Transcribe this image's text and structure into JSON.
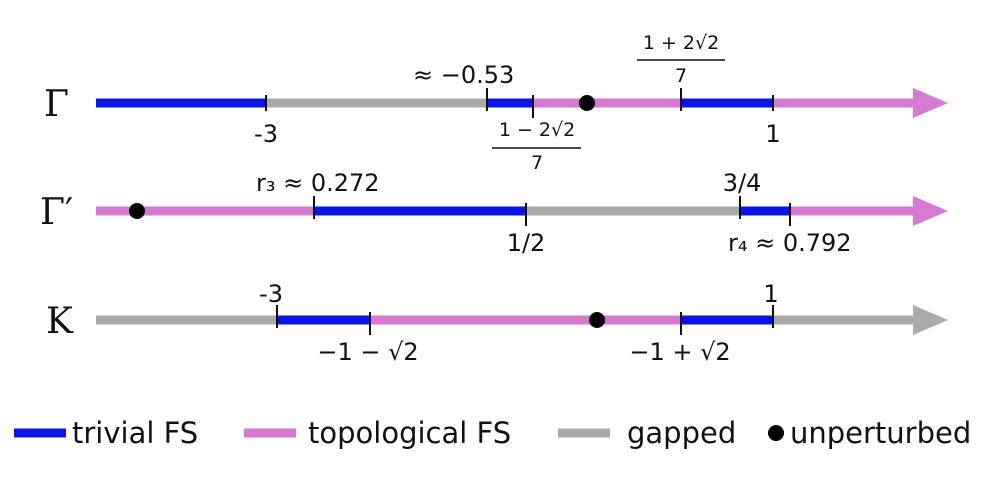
{
  "colors": {
    "trivial": "#0a14e6",
    "topological": "#d679d2",
    "gapped": "#aaaaaa",
    "unperturbed": "#000000"
  },
  "rows": [
    {
      "id": "gamma",
      "label": "Γ",
      "segments": [
        "trivial",
        "gapped",
        "trivial",
        "topological",
        "trivial",
        "topological"
      ],
      "arrow_color": "topological",
      "ticks_above": [
        "≈ −0.53"
      ],
      "ticks_below": [
        "-3",
        "1"
      ],
      "fractions": [
        {
          "num": "1 + 2√2",
          "den": "7"
        },
        {
          "num": "1 − 2√2",
          "den": "7"
        }
      ]
    },
    {
      "id": "gamma-prime",
      "label": "Γ′",
      "segments": [
        "topological",
        "trivial",
        "gapped",
        "trivial",
        "topological"
      ],
      "arrow_color": "topological",
      "ticks_above": [
        "r₃ ≈ 0.272",
        "3/4"
      ],
      "ticks_below": [
        "1/2",
        "r₄ ≈ 0.792"
      ]
    },
    {
      "id": "k",
      "label": "K",
      "segments": [
        "gapped",
        "trivial",
        "topological",
        "trivial",
        "gapped"
      ],
      "arrow_color": "gapped",
      "ticks_above": [
        "-3",
        "1"
      ],
      "ticks_below": [
        "−1 − √2",
        "−1 + √2"
      ]
    }
  ],
  "legend": {
    "trivial": "trivial FS",
    "topological": "topological FS",
    "gapped": "gapped",
    "unperturbed": "unperturbed"
  }
}
